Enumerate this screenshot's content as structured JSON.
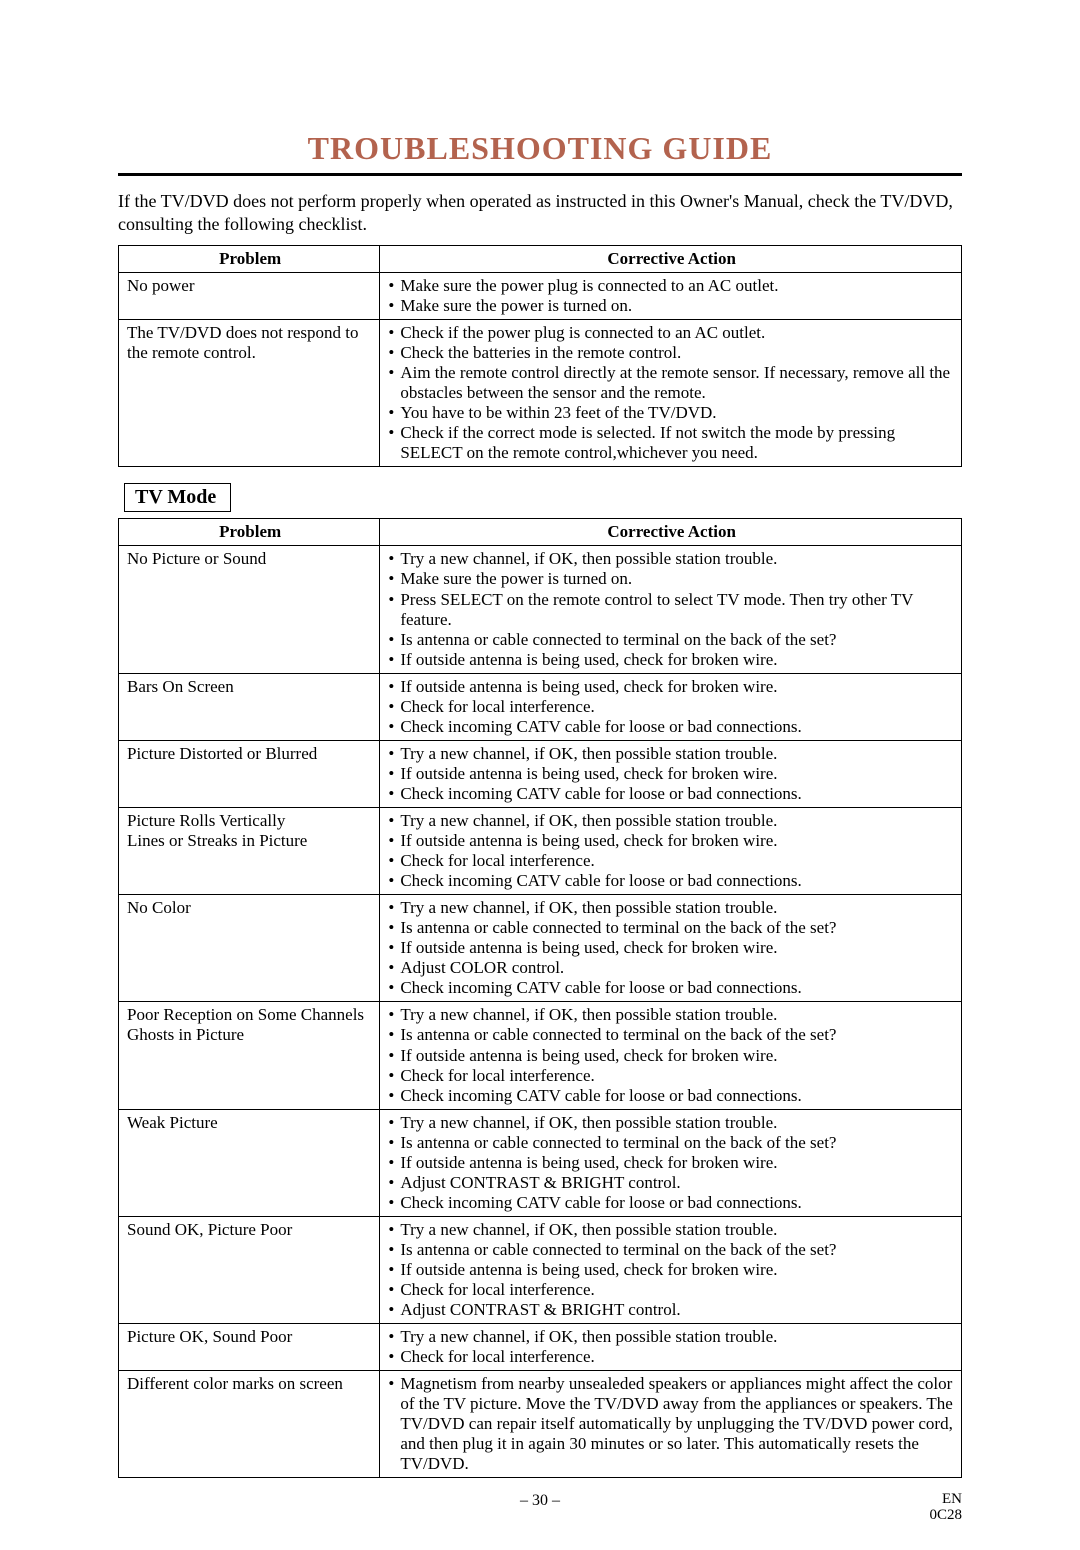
{
  "title": "TROUBLESHOOTING GUIDE",
  "title_color": "#B3634E",
  "intro": "If the TV/DVD does not perform properly when operated as instructed in this Owner's Manual, check the TV/DVD, consulting the following checklist.",
  "headers": {
    "problem": "Problem",
    "action": "Corrective Action"
  },
  "general_rows": [
    {
      "problem": "No power",
      "actions": [
        "Make sure the power plug is connected to an AC outlet.",
        "Make sure the power is turned on."
      ]
    },
    {
      "problem": "The TV/DVD does not respond to the remote control.",
      "actions": [
        "Check if the power plug is connected to an AC outlet.",
        "Check the batteries in the remote control.",
        "Aim the remote control directly at the remote sensor. If necessary, remove all the obstacles between the sensor and the remote.",
        "You have to be within 23 feet of the TV/DVD.",
        "Check if the correct mode is selected. If not switch the mode by pressing SELECT on the remote control,whichever you need."
      ]
    }
  ],
  "mode_label": "TV Mode",
  "tv_rows": [
    {
      "problem": "No Picture or Sound",
      "actions": [
        "Try a new channel, if OK, then possible station trouble.",
        "Make sure the power is turned on.",
        "Press SELECT on the remote control to select TV mode. Then try other TV feature.",
        "Is antenna or cable connected to terminal on the back of the set?",
        "If outside antenna is being used, check for broken wire."
      ]
    },
    {
      "problem": "Bars On Screen",
      "actions": [
        "If outside antenna is being used, check for broken wire.",
        "Check for local interference.",
        "Check incoming CATV cable for loose or bad connections."
      ]
    },
    {
      "problem": "Picture Distorted or Blurred",
      "actions": [
        "Try a new channel, if OK, then possible station trouble.",
        "If outside antenna is being used, check for broken wire.",
        "Check incoming CATV cable for loose or bad connections."
      ]
    },
    {
      "problem": "Picture Rolls Vertically\nLines or Streaks in Picture",
      "actions": [
        "Try a new channel, if OK, then possible station trouble.",
        "If outside antenna is being used, check for broken wire.",
        "Check for local interference.",
        "Check incoming CATV cable for loose or bad connections."
      ]
    },
    {
      "problem": "No Color",
      "actions": [
        "Try a new channel, if OK, then possible station trouble.",
        "Is antenna or cable connected to terminal on the back of the set?",
        "If outside antenna is being used, check for broken wire.",
        "Adjust COLOR control.",
        "Check incoming CATV cable for loose or bad connections."
      ]
    },
    {
      "problem": "Poor Reception on Some Channels\nGhosts in Picture",
      "actions": [
        "Try a new channel, if OK, then possible station trouble.",
        "Is antenna or cable connected to terminal on the back of the set?",
        "If outside antenna is being used, check for broken wire.",
        "Check for local interference.",
        "Check incoming CATV cable for loose or bad connections."
      ]
    },
    {
      "problem": "Weak Picture",
      "actions": [
        "Try a new channel, if OK, then possible station trouble.",
        "Is antenna or cable connected to terminal on the back of the set?",
        "If outside antenna is being used, check for broken wire.",
        "Adjust CONTRAST & BRIGHT control.",
        "Check incoming CATV cable for loose or bad connections."
      ]
    },
    {
      "problem": "Sound OK, Picture Poor",
      "actions": [
        "Try a new channel, if OK, then possible station trouble.",
        "Is antenna or cable connected to terminal on the back of the set?",
        "If outside antenna is being used, check for broken wire.",
        "Check for local interference.",
        "Adjust CONTRAST & BRIGHT control."
      ]
    },
    {
      "problem": "Picture OK, Sound Poor",
      "actions": [
        "Try a new channel, if OK, then possible station trouble.",
        "Check for local interference."
      ]
    },
    {
      "problem": "Different color marks on screen",
      "actions": [
        "Magnetism from nearby unsealeded speakers or appliances might affect the color of the TV picture. Move the TV/DVD away from the appliances or speakers. The TV/DVD can repair itself automatically by unplugging the TV/DVD power cord, and then plug it in again 30 minutes or so later. This automatically resets the TV/DVD."
      ]
    }
  ],
  "footer": {
    "page": "– 30 –",
    "lang": "EN",
    "code": "0C28"
  }
}
